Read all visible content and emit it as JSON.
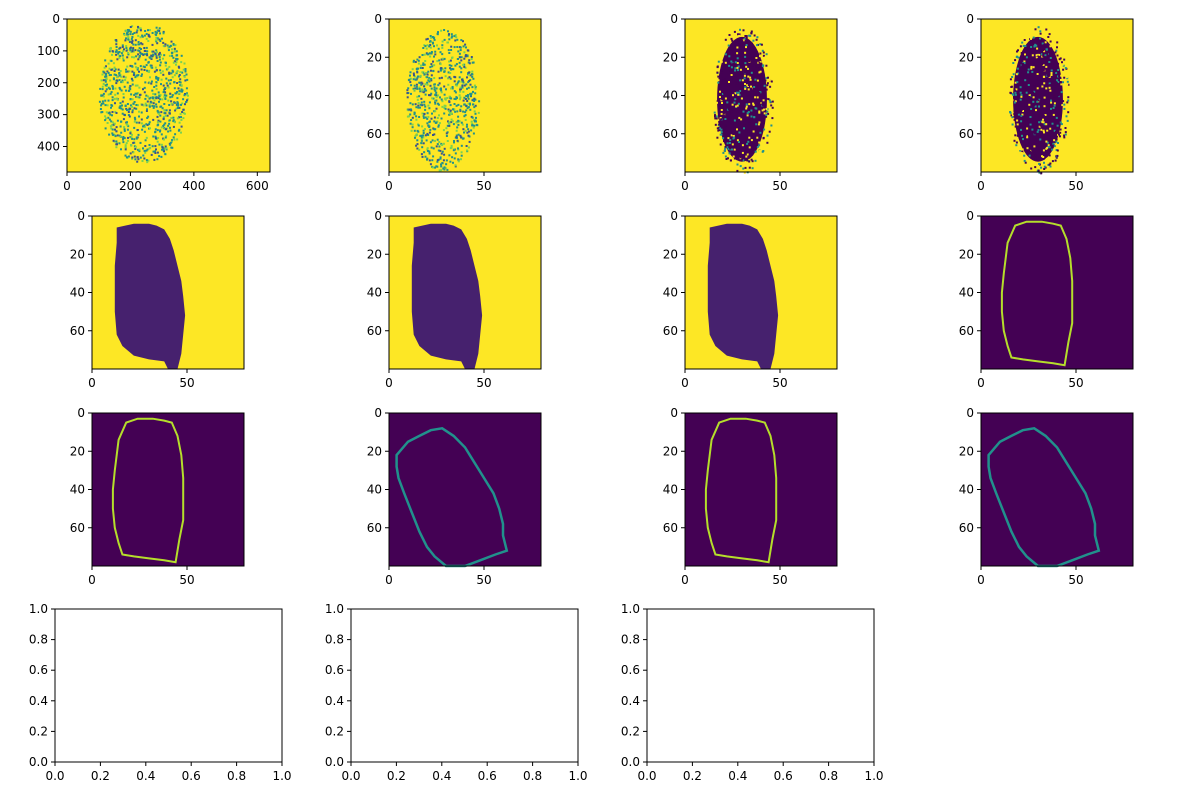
{
  "figure": {
    "title": "",
    "colors": {
      "background": "#440154",
      "foreground": "#fde725",
      "edge": "#b5de2b",
      "mid": "#3b528b",
      "teal": "#21918c",
      "light": "#7ad151"
    }
  },
  "chart_data": [
    {
      "id": "fingerprint-raw",
      "type": "heatmap",
      "image": "fingerprint",
      "xlim": [
        0,
        640
      ],
      "ylim": [
        480,
        0
      ],
      "xticks": [
        0,
        200,
        400,
        600
      ],
      "yticks": [
        0,
        100,
        200,
        300,
        400
      ],
      "title": ""
    },
    {
      "id": "orientation-map",
      "type": "heatmap",
      "image": "fingerprint-small",
      "xlim": [
        0,
        80
      ],
      "ylim": [
        80,
        0
      ],
      "xticks": [
        0,
        50
      ],
      "yticks": [
        0,
        20,
        40,
        60
      ],
      "title": ""
    },
    {
      "id": "binary-noisy-1",
      "type": "heatmap",
      "image": "binary-noisy",
      "xlim": [
        0,
        80
      ],
      "ylim": [
        80,
        0
      ],
      "xticks": [
        0,
        50
      ],
      "yticks": [
        0,
        20,
        40,
        60
      ],
      "title": ""
    },
    {
      "id": "binary-noisy-2",
      "type": "heatmap",
      "image": "binary-noisy",
      "xlim": [
        0,
        80
      ],
      "ylim": [
        80,
        0
      ],
      "xticks": [
        0,
        50
      ],
      "yticks": [
        0,
        20,
        40,
        60
      ],
      "title": ""
    },
    {
      "id": "blob-1",
      "type": "heatmap",
      "image": "blob",
      "xlim": [
        0,
        80
      ],
      "ylim": [
        80,
        0
      ],
      "xticks": [
        0,
        50
      ],
      "yticks": [
        0,
        20,
        40,
        60
      ],
      "title": ""
    },
    {
      "id": "blob-2",
      "type": "heatmap",
      "image": "blob",
      "xlim": [
        0,
        80
      ],
      "ylim": [
        80,
        0
      ],
      "xticks": [
        0,
        50
      ],
      "yticks": [
        0,
        20,
        40,
        60
      ],
      "title": ""
    },
    {
      "id": "blob-3",
      "type": "heatmap",
      "image": "blob",
      "xlim": [
        0,
        80
      ],
      "ylim": [
        80,
        0
      ],
      "xticks": [
        0,
        50
      ],
      "yticks": [
        0,
        20,
        40,
        60
      ],
      "title": ""
    },
    {
      "id": "contour-1",
      "type": "heatmap",
      "image": "contour-upright",
      "xlim": [
        0,
        80
      ],
      "ylim": [
        80,
        0
      ],
      "xticks": [
        0,
        50
      ],
      "yticks": [
        0,
        20,
        40,
        60
      ],
      "title": ""
    },
    {
      "id": "contour-2",
      "type": "heatmap",
      "image": "contour-upright",
      "xlim": [
        0,
        80
      ],
      "ylim": [
        80,
        0
      ],
      "xticks": [
        0,
        50
      ],
      "yticks": [
        0,
        20,
        40,
        60
      ],
      "title": ""
    },
    {
      "id": "contour-rotated-1",
      "type": "heatmap",
      "image": "contour-rotated",
      "xlim": [
        0,
        80
      ],
      "ylim": [
        80,
        0
      ],
      "xticks": [
        0,
        50
      ],
      "yticks": [
        0,
        20,
        40,
        60
      ],
      "title": ""
    },
    {
      "id": "contour-3",
      "type": "heatmap",
      "image": "contour-upright",
      "xlim": [
        0,
        80
      ],
      "ylim": [
        80,
        0
      ],
      "xticks": [
        0,
        50
      ],
      "yticks": [
        0,
        20,
        40,
        60
      ],
      "title": ""
    },
    {
      "id": "contour-rotated-2",
      "type": "heatmap",
      "image": "contour-rotated",
      "xlim": [
        0,
        80
      ],
      "ylim": [
        80,
        0
      ],
      "xticks": [
        0,
        50
      ],
      "yticks": [
        0,
        20,
        40,
        60
      ],
      "title": ""
    },
    {
      "id": "empty-1",
      "type": "line",
      "image": "empty",
      "xlim": [
        0,
        1
      ],
      "ylim": [
        0,
        1
      ],
      "xticks": [
        "0.0",
        "0.2",
        "0.4",
        "0.6",
        "0.8",
        "1.0"
      ],
      "yticks": [
        "0.0",
        "0.2",
        "0.4",
        "0.6",
        "0.8",
        "1.0"
      ],
      "series": [],
      "title": ""
    },
    {
      "id": "empty-2",
      "type": "line",
      "image": "empty",
      "xlim": [
        0,
        1
      ],
      "ylim": [
        0,
        1
      ],
      "xticks": [
        "0.0",
        "0.2",
        "0.4",
        "0.6",
        "0.8",
        "1.0"
      ],
      "yticks": [
        "0.0",
        "0.2",
        "0.4",
        "0.6",
        "0.8",
        "1.0"
      ],
      "series": [],
      "title": ""
    },
    {
      "id": "empty-3",
      "type": "line",
      "image": "empty",
      "xlim": [
        0,
        1
      ],
      "ylim": [
        0,
        1
      ],
      "xticks": [
        "0.0",
        "0.2",
        "0.4",
        "0.6",
        "0.8",
        "1.0"
      ],
      "yticks": [
        "0.0",
        "0.2",
        "0.4",
        "0.6",
        "0.8",
        "1.0"
      ],
      "series": [],
      "title": ""
    }
  ]
}
